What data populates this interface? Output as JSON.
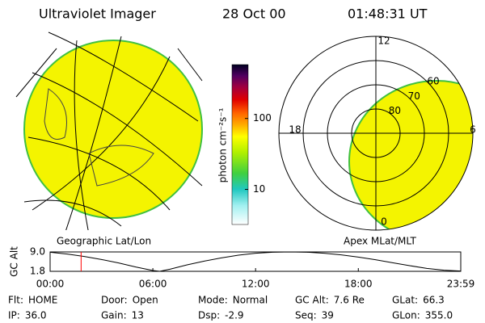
{
  "header": {
    "title": "Ultraviolet Imager",
    "date": "28 Oct 00",
    "time": "01:48:31 UT"
  },
  "image_labels": {
    "left": "Geographic Lat/Lon",
    "right": "Apex MLat/MLT"
  },
  "colorbar": {
    "label": "photon cm⁻²s⁻¹",
    "log_scale": true,
    "lim": [
      3.2,
      575
    ],
    "ticks": [
      10,
      100
    ]
  },
  "polar": {
    "mlt_ticks": [
      0,
      6,
      12,
      18
    ],
    "lat_lim": [
      90,
      50
    ],
    "lat_rings": [
      80,
      70,
      60
    ]
  },
  "altitude_chart": {
    "type": "line",
    "ylabel": "GC Alt",
    "x": [
      0,
      1,
      2,
      3,
      4,
      5,
      6,
      6.4,
      7,
      8,
      9,
      10,
      11,
      12,
      13,
      14,
      15,
      16,
      17,
      18,
      19,
      20,
      21,
      22,
      23,
      23.983
    ],
    "values": [
      8.9,
      8.2,
      7.3,
      6.2,
      4.9,
      3.4,
      2.1,
      1.8,
      2.6,
      4.2,
      5.6,
      6.8,
      7.8,
      8.5,
      8.9,
      9.0,
      8.9,
      8.5,
      7.9,
      7.1,
      6.1,
      5.0,
      3.9,
      2.9,
      2.2,
      1.9
    ],
    "color": "#000000",
    "xlim": [
      0,
      23.983
    ],
    "ylim": [
      1.8,
      9
    ],
    "xticks": [
      {
        "value": 0,
        "label": "00:00"
      },
      {
        "value": 6,
        "label": "06:00"
      },
      {
        "value": 12,
        "label": "12:00"
      },
      {
        "value": 18,
        "label": "18:00"
      },
      {
        "value": 23.983,
        "label": "23:59"
      }
    ],
    "yticks": [
      {
        "value": 9,
        "label": "9.0"
      },
      1.8
    ],
    "marker_x": 1.81,
    "marker_color": "#ff0000"
  },
  "status": [
    [
      {
        "label": "Flt:",
        "value": "HOME"
      },
      {
        "label": "Door:",
        "value": "Open"
      },
      {
        "label": "Mode:",
        "value": "Normal"
      },
      {
        "label": "GC Alt:",
        "value": "7.6 Re"
      },
      {
        "label": "GLat:",
        "value": "66.3"
      }
    ],
    [
      {
        "label": "IP:",
        "value": "36.0"
      },
      {
        "label": "Gain:",
        "value": "13"
      },
      {
        "label": "Dsp:",
        "value": "-2.9"
      },
      {
        "label": "Seq:",
        "value": "39"
      },
      {
        "label": "GLon:",
        "value": "355.0"
      }
    ]
  ]
}
